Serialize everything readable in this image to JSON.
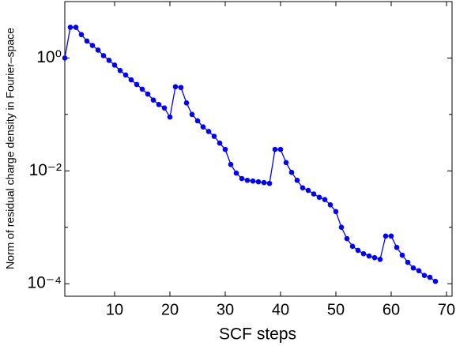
{
  "chart_data": {
    "type": "line",
    "x_label": "SCF steps",
    "y_label": "Norm of residual charge density in Fourier–space",
    "log_y": true,
    "color": "#0000ff",
    "xlim": [
      1,
      71
    ],
    "xticks": [
      10,
      20,
      30,
      40,
      50,
      60,
      70
    ],
    "ylim": [
      6e-05,
      10
    ],
    "yticks": [
      {
        "value": 1,
        "label": "10⁰"
      },
      {
        "value": 0.01,
        "label": "10⁻²"
      },
      {
        "value": 0.0001,
        "label": "10⁻⁴"
      }
    ],
    "minor_yticks": [
      10,
      0.1,
      0.001
    ],
    "x": [
      1,
      2,
      3,
      4,
      5,
      6,
      7,
      8,
      9,
      10,
      11,
      12,
      13,
      14,
      15,
      16,
      17,
      18,
      19,
      20,
      21,
      22,
      23,
      24,
      25,
      26,
      27,
      28,
      29,
      30,
      31,
      32,
      33,
      34,
      35,
      36,
      37,
      38,
      39,
      40,
      41,
      42,
      43,
      44,
      45,
      46,
      47,
      48,
      49,
      50,
      51,
      52,
      53,
      54,
      55,
      56,
      57,
      58,
      59,
      60,
      61,
      62,
      63,
      64,
      65,
      66,
      67,
      68
    ],
    "values": [
      1,
      3.5,
      3.5,
      2.6,
      2.0,
      1.67,
      1.38,
      1.1,
      0.91,
      0.75,
      0.6,
      0.5,
      0.41,
      0.34,
      0.28,
      0.23,
      0.18,
      0.15,
      0.13,
      0.09,
      0.31,
      0.3,
      0.16,
      0.1,
      0.077,
      0.06,
      0.05,
      0.041,
      0.031,
      0.024,
      0.013,
      0.0091,
      0.0073,
      0.0068,
      0.0066,
      0.0064,
      0.0062,
      0.006,
      0.024,
      0.024,
      0.014,
      0.0094,
      0.0068,
      0.005,
      0.0045,
      0.0039,
      0.0034,
      0.0031,
      0.0025,
      0.0019,
      0.001,
      0.00063,
      0.00046,
      0.00039,
      0.00034,
      0.00031,
      0.00029,
      0.00027,
      0.0007,
      0.0007,
      0.00044,
      0.00032,
      0.00024,
      0.00019,
      0.00017,
      0.00014,
      0.00013,
      0.00011
    ]
  }
}
